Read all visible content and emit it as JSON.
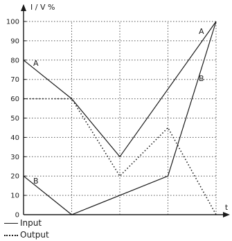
{
  "chart_data": {
    "type": "line",
    "ylabel": "I / V %",
    "xlabel": "t",
    "ylim": [
      0,
      100
    ],
    "y_ticks": [
      "0",
      "10",
      "20",
      "30",
      "40",
      "50",
      "60",
      "70",
      "80",
      "90",
      "100"
    ],
    "grid": "dotted vertical and horizontal",
    "legend_placement": "bottom-left",
    "series": [
      {
        "name": "Input",
        "style": "solid",
        "curve_label": "A",
        "x": [
          0,
          1,
          2,
          4
        ],
        "values": [
          80,
          60,
          30,
          100
        ]
      },
      {
        "name": "Input",
        "style": "solid",
        "curve_label": "B",
        "x": [
          0,
          1,
          3,
          4
        ],
        "values": [
          20,
          0,
          20,
          100
        ]
      },
      {
        "name": "Output",
        "style": "dotted",
        "x": [
          0,
          1,
          2,
          3,
          4
        ],
        "values": [
          60,
          60,
          20,
          45,
          0
        ]
      }
    ]
  },
  "legend": {
    "input": "Input",
    "output": "Output"
  },
  "colors": {
    "ink": "#1a1a1a",
    "grid": "#555555"
  }
}
